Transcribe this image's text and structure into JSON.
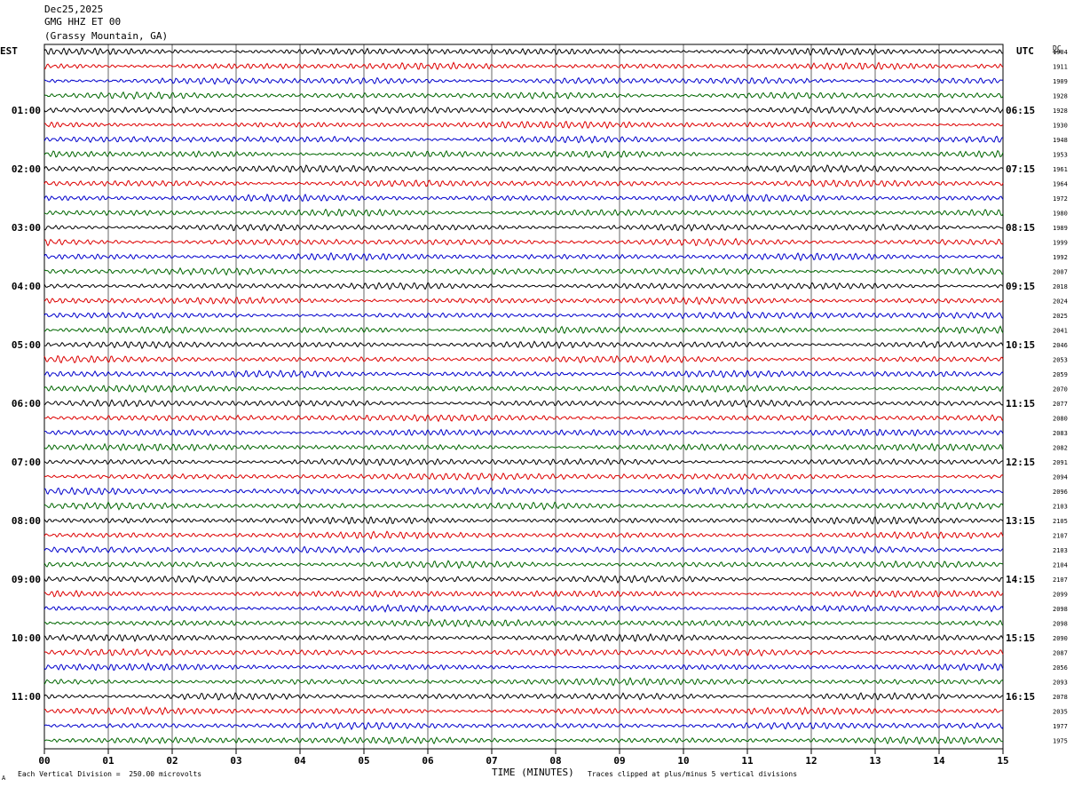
{
  "header": {
    "date": "Dec25,2025",
    "station": "GMG HHZ ET 00",
    "location": "(Grassy Mountain, GA)"
  },
  "tz_left": "EST",
  "tz_right": "UTC",
  "dc_label": "DC",
  "footer": {
    "scale": "Each Vertical Division =  250.00 microvolts",
    "xlabel": "TIME (MINUTES)",
    "clip_note": "Traces clipped at plus/minus 5 vertical divisions",
    "corner_mark": "A"
  },
  "chart_data": {
    "type": "line",
    "title": "GMG HHZ ET 00 (Grassy Mountain, GA)",
    "xlabel": "TIME (MINUTES)",
    "xlim": [
      0,
      15
    ],
    "x_ticks": [
      "00",
      "01",
      "02",
      "03",
      "04",
      "05",
      "06",
      "07",
      "08",
      "09",
      "10",
      "11",
      "12",
      "13",
      "14",
      "15"
    ],
    "trace_colors": [
      "#000000",
      "#dd0000",
      "#0000cc",
      "#006600"
    ],
    "est_hour_labels": [
      "01:00",
      "02:00",
      "03:00",
      "04:00",
      "05:00",
      "06:00",
      "07:00",
      "08:00",
      "09:00",
      "10:00",
      "11:00"
    ],
    "utc_hour_labels": [
      "06:15",
      "07:15",
      "08:15",
      "09:15",
      "10:15",
      "11:15",
      "12:15",
      "13:15",
      "14:15",
      "15:15",
      "16:15"
    ],
    "trace_dc_offsets": [
      1904,
      1911,
      1909,
      1928,
      1928,
      1930,
      1948,
      1953,
      1961,
      1964,
      1972,
      1980,
      1989,
      1999,
      1992,
      2007,
      2018,
      2024,
      2025,
      2041,
      2046,
      2053,
      2059,
      2070,
      2077,
      2080,
      2083,
      2082,
      2091,
      2094,
      2096,
      2103,
      2105,
      2107,
      2103,
      2104,
      2107,
      2099,
      2098,
      2098,
      2090,
      2087,
      2056,
      2093,
      2078,
      2035,
      1977,
      1975
    ],
    "scale_microvolts_per_division": 250.0,
    "clip_divisions": 5
  }
}
